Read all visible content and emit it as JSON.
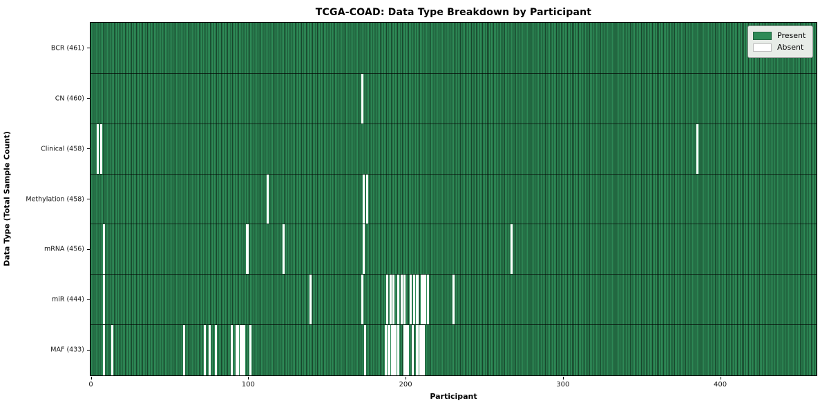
{
  "title": "TCGA-COAD: Data Type Breakdown by Participant",
  "chart_data": {
    "type": "heatmap",
    "title": "TCGA-COAD: Data Type Breakdown by Participant",
    "xlabel": "Participant",
    "ylabel": "Data Type (Total Sample Count)",
    "x_ticks": [
      0,
      100,
      200,
      300,
      400
    ],
    "x_range": [
      0,
      461
    ],
    "total_participants": 461,
    "grid": false,
    "legend": {
      "position": "upper-right",
      "entries": [
        {
          "label": "Present",
          "color": "#2E8B57"
        },
        {
          "label": "Absent",
          "color": "#FFFFFF"
        }
      ]
    },
    "colors": {
      "present": "#2E8B57",
      "absent": "#FFFFFF",
      "cell_edge": "rgba(0,0,0,0.5)",
      "row_separator": "rgba(0,0,0,0.65)"
    },
    "rows": [
      {
        "label": "BCR (461)",
        "data_type": "BCR",
        "present_count": 461,
        "absent_participants": []
      },
      {
        "label": "CN (460)",
        "data_type": "CN",
        "present_count": 460,
        "absent_participants": [
          172
        ]
      },
      {
        "label": "Clinical (458)",
        "data_type": "Clinical",
        "present_count": 458,
        "absent_participants": [
          4,
          6,
          385
        ]
      },
      {
        "label": "Methylation (458)",
        "data_type": "Methylation",
        "present_count": 458,
        "absent_participants": [
          112,
          173,
          175
        ]
      },
      {
        "label": "mRNA (456)",
        "data_type": "mRNA",
        "present_count": 456,
        "absent_participants": [
          8,
          99,
          122,
          173,
          267
        ]
      },
      {
        "label": "miR (444)",
        "data_type": "miR",
        "present_count": 444,
        "absent_participants": [
          8,
          139,
          172,
          188,
          190,
          192,
          195,
          197,
          199,
          203,
          205,
          207,
          210,
          211,
          212,
          214,
          230
        ]
      },
      {
        "label": "MAF (433)",
        "data_type": "MAF",
        "present_count": 433,
        "absent_participants": [
          8,
          13,
          59,
          72,
          75,
          79,
          89,
          92,
          93,
          95,
          96,
          97,
          101,
          174,
          187,
          189,
          191,
          192,
          193,
          195,
          199,
          200,
          201,
          204,
          207,
          209,
          210,
          211
        ]
      }
    ]
  }
}
